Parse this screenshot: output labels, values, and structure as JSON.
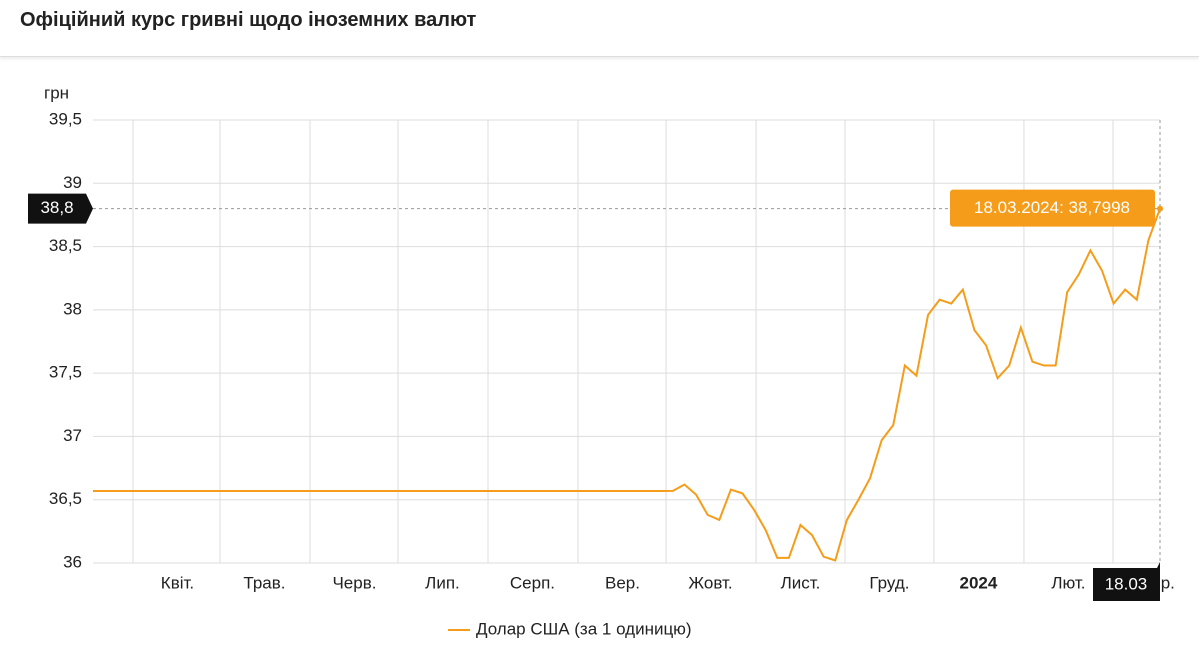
{
  "header": {
    "title": "Офіційний курс гривні щодо іноземних валют"
  },
  "chart_data": {
    "type": "line",
    "y_label": "грн",
    "xlim": [
      0,
      92
    ],
    "ylim": [
      36,
      39.5
    ],
    "yticks": [
      {
        "value": 36,
        "label": "36"
      },
      {
        "value": 36.5,
        "label": "36,5"
      },
      {
        "value": 37,
        "label": "37"
      },
      {
        "value": 37.5,
        "label": "37,5"
      },
      {
        "value": 38,
        "label": "38"
      },
      {
        "value": 38.5,
        "label": "38,5"
      },
      {
        "value": 39,
        "label": "39"
      },
      {
        "value": 39.5,
        "label": "39,5"
      }
    ],
    "xticks": [
      {
        "value": 3.45,
        "label": "Квіт."
      },
      {
        "value": 10.95,
        "label": "Трав."
      },
      {
        "value": 18.71,
        "label": "Черв."
      },
      {
        "value": 26.3,
        "label": "Лип."
      },
      {
        "value": 34.06,
        "label": "Серп."
      },
      {
        "value": 41.82,
        "label": "Вер."
      },
      {
        "value": 49.41,
        "label": "Жовт."
      },
      {
        "value": 57.17,
        "label": "Лист."
      },
      {
        "value": 64.84,
        "label": "Груд."
      },
      {
        "value": 72.51,
        "label": "2024",
        "bold": true
      },
      {
        "value": 80.27,
        "label": "Лют."
      },
      {
        "value": 87.95,
        "label": "Бер."
      }
    ],
    "grid": true,
    "series": [
      {
        "name": "Долар США (за 1 одиницю)",
        "color": "#f59d1a",
        "values": [
          36.5686,
          36.5686,
          36.5686,
          36.5686,
          36.5686,
          36.5686,
          36.5686,
          36.5686,
          36.5686,
          36.5686,
          36.5686,
          36.5686,
          36.5686,
          36.5686,
          36.5686,
          36.5686,
          36.5686,
          36.5686,
          36.5686,
          36.5686,
          36.5686,
          36.5686,
          36.5686,
          36.5686,
          36.5686,
          36.5686,
          36.5686,
          36.5686,
          36.5686,
          36.5686,
          36.5686,
          36.5686,
          36.5686,
          36.5686,
          36.5686,
          36.5686,
          36.5686,
          36.5686,
          36.5686,
          36.5686,
          36.5686,
          36.5686,
          36.5686,
          36.5686,
          36.5686,
          36.5686,
          36.5686,
          36.5686,
          36.5686,
          36.5686,
          36.57,
          36.62,
          36.54,
          36.38,
          36.34,
          36.58,
          36.55,
          36.42,
          36.26,
          36.04,
          36.04,
          36.3,
          36.22,
          36.05,
          36.02,
          36.34,
          36.5,
          36.67,
          36.97,
          37.09,
          37.56,
          37.48,
          37.96,
          38.08,
          38.05,
          38.16,
          37.84,
          37.72,
          37.46,
          37.56,
          37.86,
          37.59,
          37.56,
          37.56,
          38.14,
          38.28,
          38.47,
          38.31,
          38.05,
          38.16,
          38.08,
          38.55,
          38.7998
        ]
      }
    ],
    "crosshair": {
      "y_label": "38,8",
      "x_label": "18.03",
      "tooltip": "18.03.2024: 38,7998"
    }
  }
}
